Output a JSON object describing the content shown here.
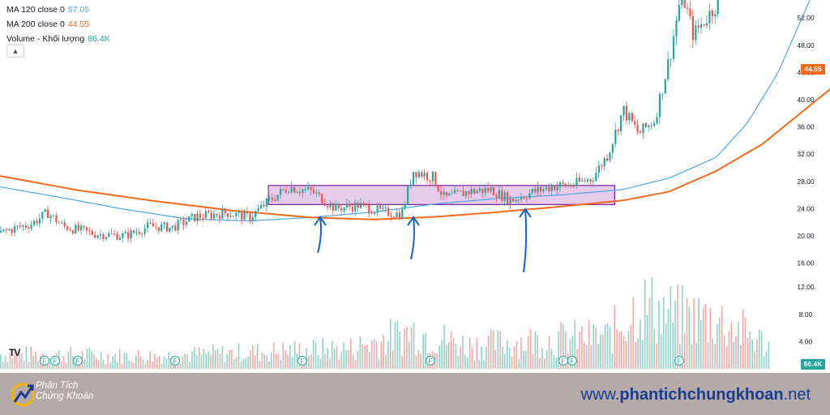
{
  "legend": {
    "ma120_label": "MA 120 close 0",
    "ma120_value": "57.05",
    "ma200_label": "MA 200 close 0",
    "ma200_value": "44.55",
    "volume_label": "Volume - Khối lượng",
    "volume_value": "86.4K"
  },
  "colors": {
    "ma120": "#4fa7e0",
    "ma200": "#f26b1d",
    "up": "#26a69a",
    "down": "#ef5350",
    "vol_up": "#8fd3c7",
    "vol_down": "#f4a9a7",
    "box_fill": "#e1bee7",
    "box_stroke": "#7b1fa2",
    "arrow": "#1565c0"
  },
  "price_tags": {
    "ma200_tag": "44.55",
    "volume_tag": "86.4K"
  },
  "footer": {
    "brand_line1": "Phân Tích",
    "brand_line2": "Chứng Khoán",
    "site_prefix": "www.",
    "site_bold": "phantichchungkhoan",
    "site_suffix": ".net"
  },
  "chart_data": {
    "type": "candlestick",
    "y_ticks": [
      "4.00",
      "8.00",
      "12.00",
      "16.00",
      "20.00",
      "24.00",
      "28.00",
      "32.00",
      "36.00",
      "40.00",
      "44.00",
      "48.00",
      "52.00"
    ],
    "price_range": [
      14.3,
      56.0
    ],
    "volume_ticks": [
      "4.00",
      "8.00",
      "12.00"
    ],
    "price_keypoints": [
      [
        0,
        20.5
      ],
      [
        0.04,
        21.8
      ],
      [
        0.06,
        23.4
      ],
      [
        0.08,
        21.4
      ],
      [
        0.12,
        20.3
      ],
      [
        0.16,
        20.0
      ],
      [
        0.19,
        21.4
      ],
      [
        0.22,
        21.2
      ],
      [
        0.25,
        22.8
      ],
      [
        0.29,
        23.4
      ],
      [
        0.32,
        22.7
      ],
      [
        0.345,
        25.2
      ],
      [
        0.37,
        27.2
      ],
      [
        0.4,
        26.5
      ],
      [
        0.43,
        24.0
      ],
      [
        0.46,
        24.5
      ],
      [
        0.49,
        23.5
      ],
      [
        0.515,
        23.2
      ],
      [
        0.53,
        29.6
      ],
      [
        0.555,
        28.6
      ],
      [
        0.57,
        25.5
      ],
      [
        0.6,
        26.5
      ],
      [
        0.63,
        26.8
      ],
      [
        0.655,
        25.2
      ],
      [
        0.68,
        26.3
      ],
      [
        0.71,
        27.3
      ],
      [
        0.735,
        27.5
      ],
      [
        0.76,
        28.5
      ],
      [
        0.78,
        32.0
      ],
      [
        0.8,
        38.5
      ],
      [
        0.82,
        35.0
      ],
      [
        0.84,
        37.0
      ],
      [
        0.86,
        46.5
      ],
      [
        0.875,
        56.0
      ],
      [
        0.89,
        49.5
      ],
      [
        0.91,
        52.5
      ],
      [
        0.925,
        55.0
      ]
    ],
    "ma120_keypoints": [
      [
        0,
        27.2
      ],
      [
        0.08,
        25.6
      ],
      [
        0.16,
        23.9
      ],
      [
        0.24,
        22.5
      ],
      [
        0.32,
        22.2
      ],
      [
        0.4,
        22.7
      ],
      [
        0.48,
        23.5
      ],
      [
        0.56,
        24.7
      ],
      [
        0.64,
        25.5
      ],
      [
        0.72,
        26.0
      ],
      [
        0.8,
        26.8
      ],
      [
        0.86,
        28.5
      ],
      [
        0.92,
        31.5
      ],
      [
        0.96,
        36.5
      ],
      [
        1.0,
        44.0
      ],
      [
        1.05,
        57.05
      ]
    ],
    "ma200_keypoints": [
      [
        0,
        28.8
      ],
      [
        0.1,
        26.7
      ],
      [
        0.2,
        25.1
      ],
      [
        0.3,
        23.7
      ],
      [
        0.4,
        22.7
      ],
      [
        0.48,
        22.4
      ],
      [
        0.56,
        22.8
      ],
      [
        0.64,
        23.5
      ],
      [
        0.72,
        24.3
      ],
      [
        0.8,
        25.2
      ],
      [
        0.86,
        26.5
      ],
      [
        0.92,
        29.5
      ],
      [
        0.98,
        33.5
      ],
      [
        1.05,
        40.0
      ],
      [
        1.1,
        44.55
      ]
    ],
    "volume_keypoints": [
      [
        0,
        2.5
      ],
      [
        0.2,
        2.2
      ],
      [
        0.35,
        3.0
      ],
      [
        0.45,
        3.5
      ],
      [
        0.53,
        6.5
      ],
      [
        0.6,
        4.0
      ],
      [
        0.7,
        5.0
      ],
      [
        0.78,
        5.5
      ],
      [
        0.82,
        11.0
      ],
      [
        0.87,
        9.0
      ],
      [
        0.92,
        8.5
      ],
      [
        0.96,
        6.0
      ],
      [
        1.0,
        3.0
      ]
    ],
    "consolidation_box": {
      "price_low": 24.6,
      "price_high": 27.4,
      "start_frac": 0.345,
      "end_frac": 0.79
    },
    "events_label": "F"
  }
}
